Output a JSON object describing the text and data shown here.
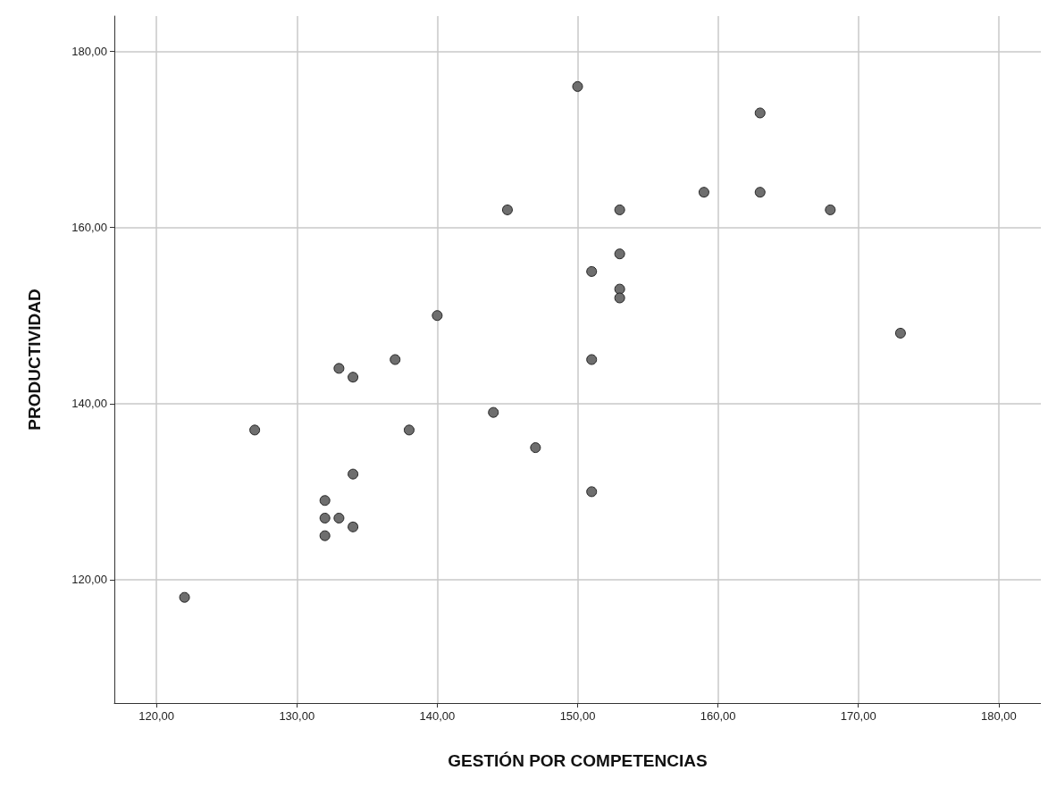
{
  "chart_data": {
    "type": "scatter",
    "xlabel": "GESTIÓN POR COMPETENCIAS",
    "ylabel": "PRODUCTIVIDAD",
    "x": [
      122,
      127,
      132,
      132,
      132,
      133,
      133,
      134,
      134,
      134,
      137,
      138,
      140,
      144,
      145,
      147,
      150,
      151,
      151,
      151,
      153,
      153,
      153,
      153,
      159,
      163,
      163,
      168,
      173
    ],
    "values": [
      118,
      137,
      129,
      127,
      125,
      127,
      144,
      143,
      132,
      126,
      145,
      137,
      150,
      139,
      162,
      135,
      176,
      155,
      145,
      130,
      162,
      157,
      153,
      152,
      164,
      173,
      164,
      162,
      148
    ],
    "color": "#6e6e6e",
    "marker": "circle",
    "grid": true,
    "xlim": [
      117,
      183
    ],
    "xticks": [
      {
        "value": 120,
        "label": "120,00"
      },
      {
        "value": 130,
        "label": "130,00"
      },
      {
        "value": 140,
        "label": "140,00"
      },
      {
        "value": 150,
        "label": "150,00"
      },
      {
        "value": 160,
        "label": "160,00"
      },
      {
        "value": 170,
        "label": "170,00"
      },
      {
        "value": 180,
        "label": "180,00"
      }
    ],
    "ylim": [
      106,
      184
    ],
    "yticks": [
      {
        "value": 120,
        "label": "120,00"
      },
      {
        "value": 140,
        "label": "140,00"
      },
      {
        "value": 160,
        "label": "160,00"
      },
      {
        "value": 180,
        "label": "180,00"
      }
    ]
  }
}
